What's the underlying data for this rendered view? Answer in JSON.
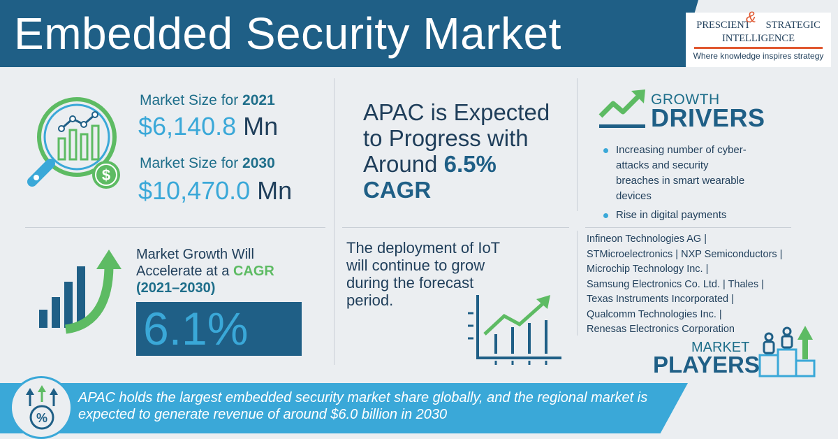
{
  "header": {
    "title": "Embedded Security Market",
    "logo_line1_left": "PRESCIENT",
    "logo_ampersand": "&",
    "logo_line1_right": "STRATEGIC",
    "logo_line2": "INTELLIGENCE",
    "logo_tagline": "Where knowledge inspires strategy"
  },
  "market_size": {
    "label_2021_prefix": "Market Size for ",
    "year_2021": "2021",
    "value_2021": "$6,140.8",
    "unit_2021": "Mn",
    "label_2030_prefix": "Market Size for ",
    "year_2030": "2030",
    "value_2030": "$10,470.0",
    "unit_2030": "Mn"
  },
  "apac": {
    "line_1": "APAC is Expected",
    "line_2": "to Progress with",
    "line_3_prefix": "Around ",
    "rate": "6.5%",
    "cagr": "CAGR"
  },
  "growth_drivers": {
    "small": "GROWTH",
    "big": "DRIVERS",
    "items": [
      "Increasing number of cyber-attacks and security breaches in smart wearable devices",
      "Rise in digital payments"
    ]
  },
  "cagr_block": {
    "line_1": "Market Growth Will",
    "line_2_prefix": "Accelerate at a ",
    "cagr_word": "CAGR",
    "years": "(2021–2030)",
    "value": "6.1%"
  },
  "iot": {
    "text": "The deployment of IoT will continue to grow during the forecast period."
  },
  "players": {
    "lines": [
      "Infineon Technologies AG |",
      "STMicroelectronics | NXP Semiconductors |",
      "Microchip Technology Inc. |",
      "Samsung Electronics Co. Ltd. | Thales |",
      "Texas Instruments Incorporated |",
      "Qualcomm Technologies Inc. |",
      "Renesas Electronics Corporation"
    ],
    "label_small": "MARKET",
    "label_big": "PLAYERS"
  },
  "banner": {
    "text": "APAC holds the largest embedded security market share globally, and the regional market is expected to generate revenue of around $6.0 billion in 2030"
  },
  "colors": {
    "navy": "#1f5f86",
    "dark_text": "#1f3e5a",
    "light_blue": "#3aa8d8",
    "green": "#5dbb63",
    "orange": "#e0572f",
    "background": "#ebeef1"
  }
}
